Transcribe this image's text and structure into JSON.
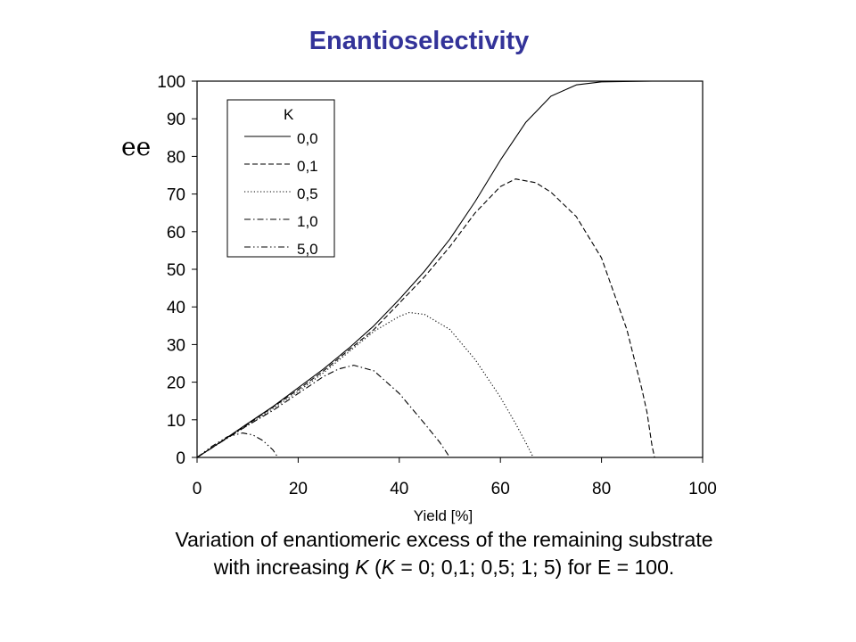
{
  "title": "Enantioselectivity",
  "colors": {
    "title": "#333399",
    "axis": "#000000",
    "line": "#000000",
    "background": "#ffffff"
  },
  "caption": {
    "line1": "Variation of enantiomeric excess of the remaining substrate",
    "line2_pre": "with increasing ",
    "line2_k1": "K",
    "line2_mid": " (",
    "line2_k2": "K",
    "line2_post": " = 0; 0,1; 0,5; 1; 5) for E = 100."
  },
  "chart_data": {
    "type": "line",
    "title": "Enantioselectivity",
    "xlabel": "Yield [%]",
    "ylabel": "ee",
    "xlim": [
      0,
      100
    ],
    "ylim": [
      0,
      100
    ],
    "xticks": [
      0,
      20,
      40,
      60,
      80,
      100
    ],
    "yticks": [
      0,
      10,
      20,
      30,
      40,
      50,
      60,
      70,
      80,
      90,
      100
    ],
    "grid": false,
    "legend": {
      "title": "K",
      "placement": "top-left"
    },
    "series": [
      {
        "name": "0,0",
        "dash": "solid",
        "x": [
          0,
          5,
          10,
          15,
          20,
          25,
          30,
          35,
          40,
          45,
          50,
          55,
          60,
          65,
          70,
          75,
          80,
          90,
          100
        ],
        "y": [
          0,
          4.4,
          9,
          13.5,
          18.5,
          23.5,
          29,
          35,
          42,
          49.5,
          58,
          68,
          79,
          89,
          96,
          99,
          99.8,
          100,
          100
        ]
      },
      {
        "name": "0,1",
        "dash": "dashed",
        "x": [
          0,
          5,
          10,
          15,
          20,
          25,
          30,
          35,
          40,
          45,
          50,
          55,
          60,
          63,
          67,
          70,
          75,
          80,
          85,
          88,
          89,
          90,
          90.5
        ],
        "y": [
          0,
          4.4,
          8.8,
          13.4,
          18,
          23,
          28.5,
          34,
          41,
          48,
          56,
          65,
          72,
          74,
          73,
          70.5,
          64,
          53,
          34,
          18,
          12,
          3,
          0
        ]
      },
      {
        "name": "0,5",
        "dash": "dotted",
        "x": [
          0,
          5,
          10,
          15,
          20,
          25,
          30,
          35,
          40,
          42,
          45,
          50,
          55,
          60,
          63,
          65,
          66.5
        ],
        "y": [
          0,
          4.3,
          8.5,
          13,
          17.5,
          22.5,
          28,
          33.5,
          37.5,
          38.5,
          38,
          34,
          26,
          16,
          9,
          4,
          0
        ]
      },
      {
        "name": "1,0",
        "dash": "dashdot",
        "x": [
          0,
          5,
          10,
          15,
          20,
          25,
          28,
          31,
          35,
          40,
          45,
          48,
          50
        ],
        "y": [
          0,
          4.3,
          8.5,
          12.5,
          17,
          21.5,
          23.5,
          24.5,
          23,
          17,
          9,
          4,
          0
        ]
      },
      {
        "name": "5,0",
        "dash": "dashdotdot",
        "x": [
          0,
          3,
          6,
          9,
          11,
          13,
          15,
          16
        ],
        "y": [
          0,
          3,
          5.5,
          6.5,
          6,
          4.5,
          2,
          0
        ]
      }
    ]
  }
}
